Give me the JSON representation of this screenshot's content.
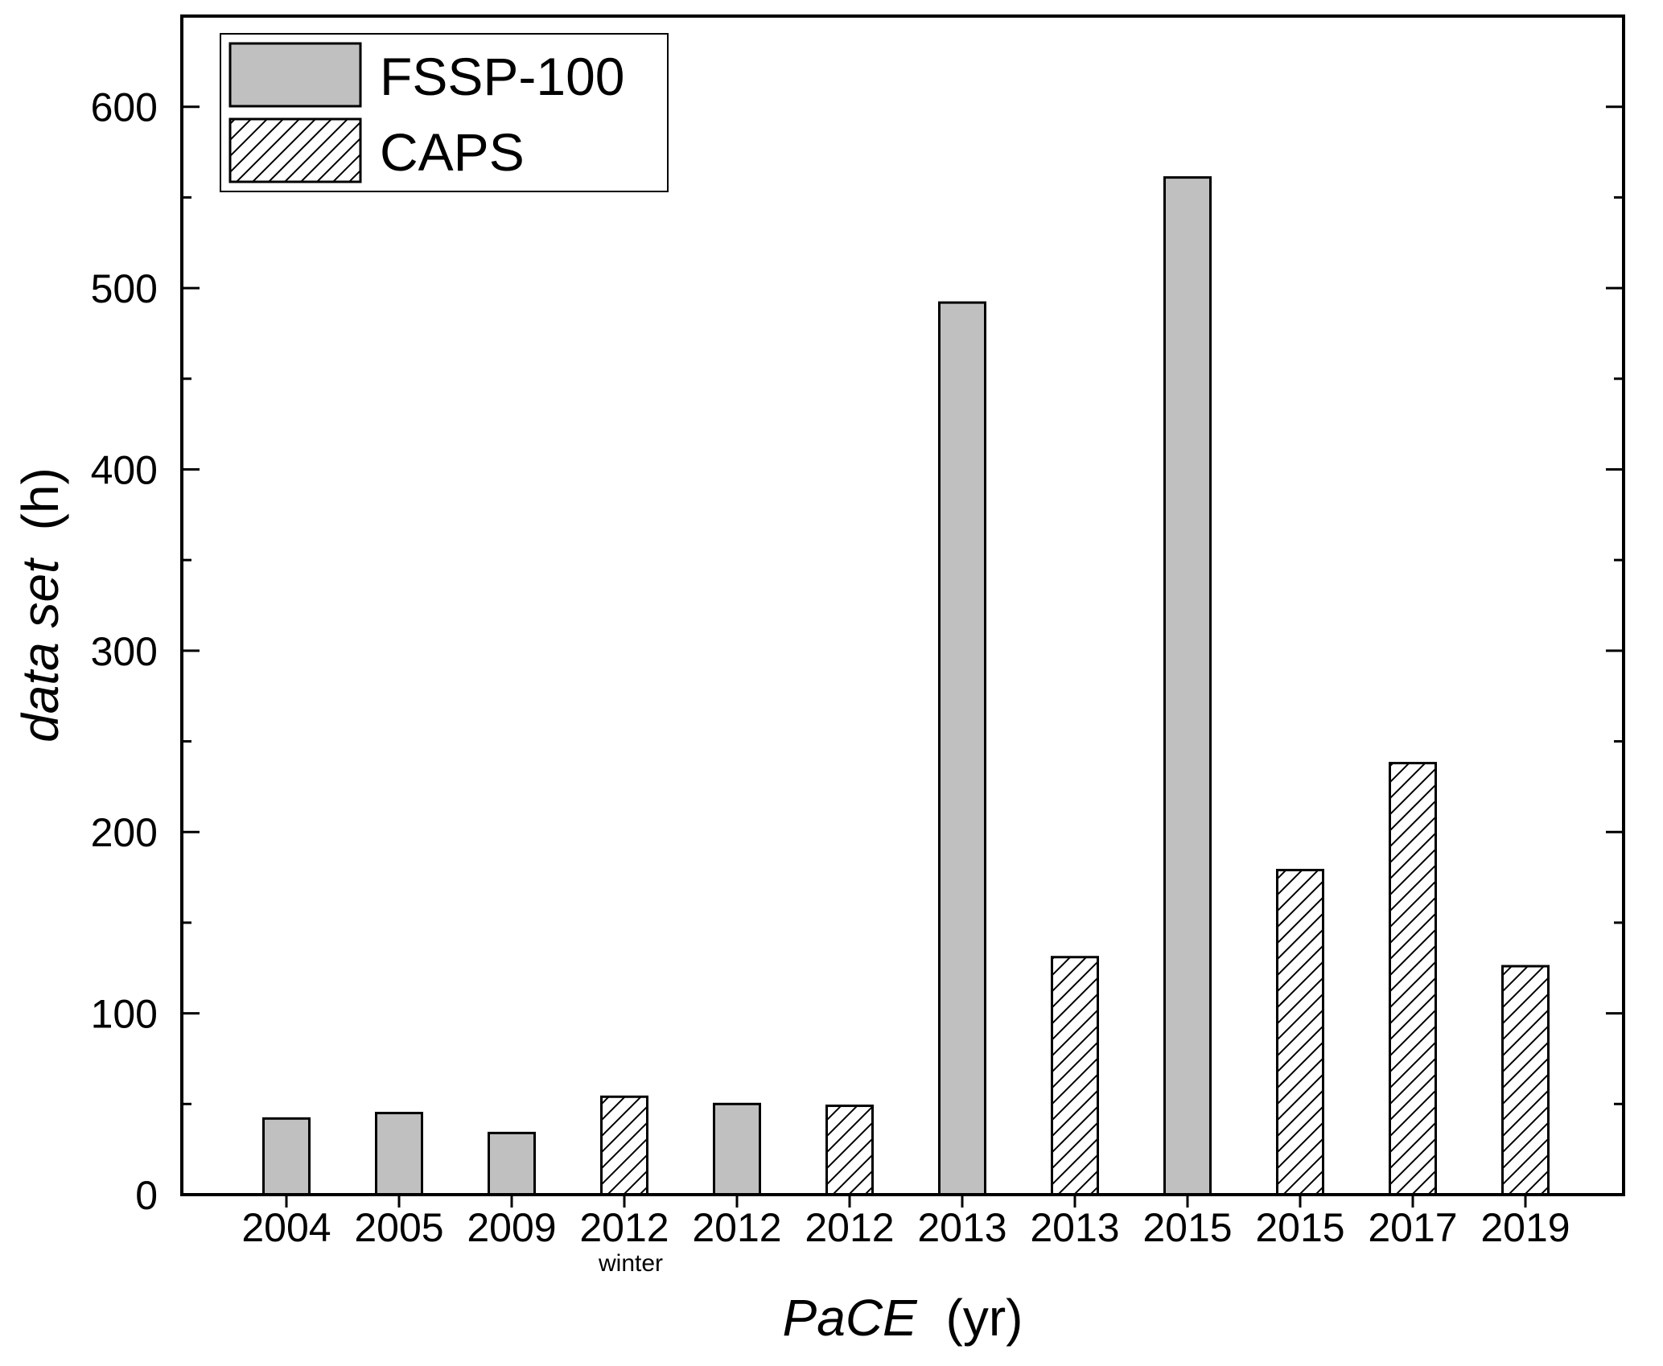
{
  "chart_data": {
    "type": "bar",
    "xlabel": {
      "italic": "PaCE",
      "unit": "(yr)"
    },
    "ylabel": {
      "italic": "data set",
      "unit": "(h)"
    },
    "ylim": [
      0,
      650
    ],
    "yticks": [
      0,
      100,
      200,
      300,
      400,
      500,
      600
    ],
    "categories": [
      "2004",
      "2005",
      "2009",
      "2012",
      "2012",
      "2012",
      "2013",
      "2013",
      "2015",
      "2015",
      "2017",
      "2019"
    ],
    "sublabels": [
      "",
      "",
      "",
      "winter",
      "",
      "",
      "",
      "",
      "",
      "",
      "",
      ""
    ],
    "values": [
      42,
      45,
      34,
      54,
      50,
      49,
      492,
      131,
      561,
      179,
      238,
      126
    ],
    "instrument": [
      "FSSP-100",
      "FSSP-100",
      "FSSP-100",
      "CAPS",
      "FSSP-100",
      "CAPS",
      "FSSP-100",
      "CAPS",
      "FSSP-100",
      "CAPS",
      "CAPS",
      "CAPS"
    ],
    "series": [
      {
        "name": "FSSP-100",
        "fill": "#c0c0c0",
        "pattern": "solid"
      },
      {
        "name": "CAPS",
        "fill": "#ffffff",
        "pattern": "diagonal-hatch"
      }
    ],
    "legend_position": "top-left",
    "grid": false
  }
}
